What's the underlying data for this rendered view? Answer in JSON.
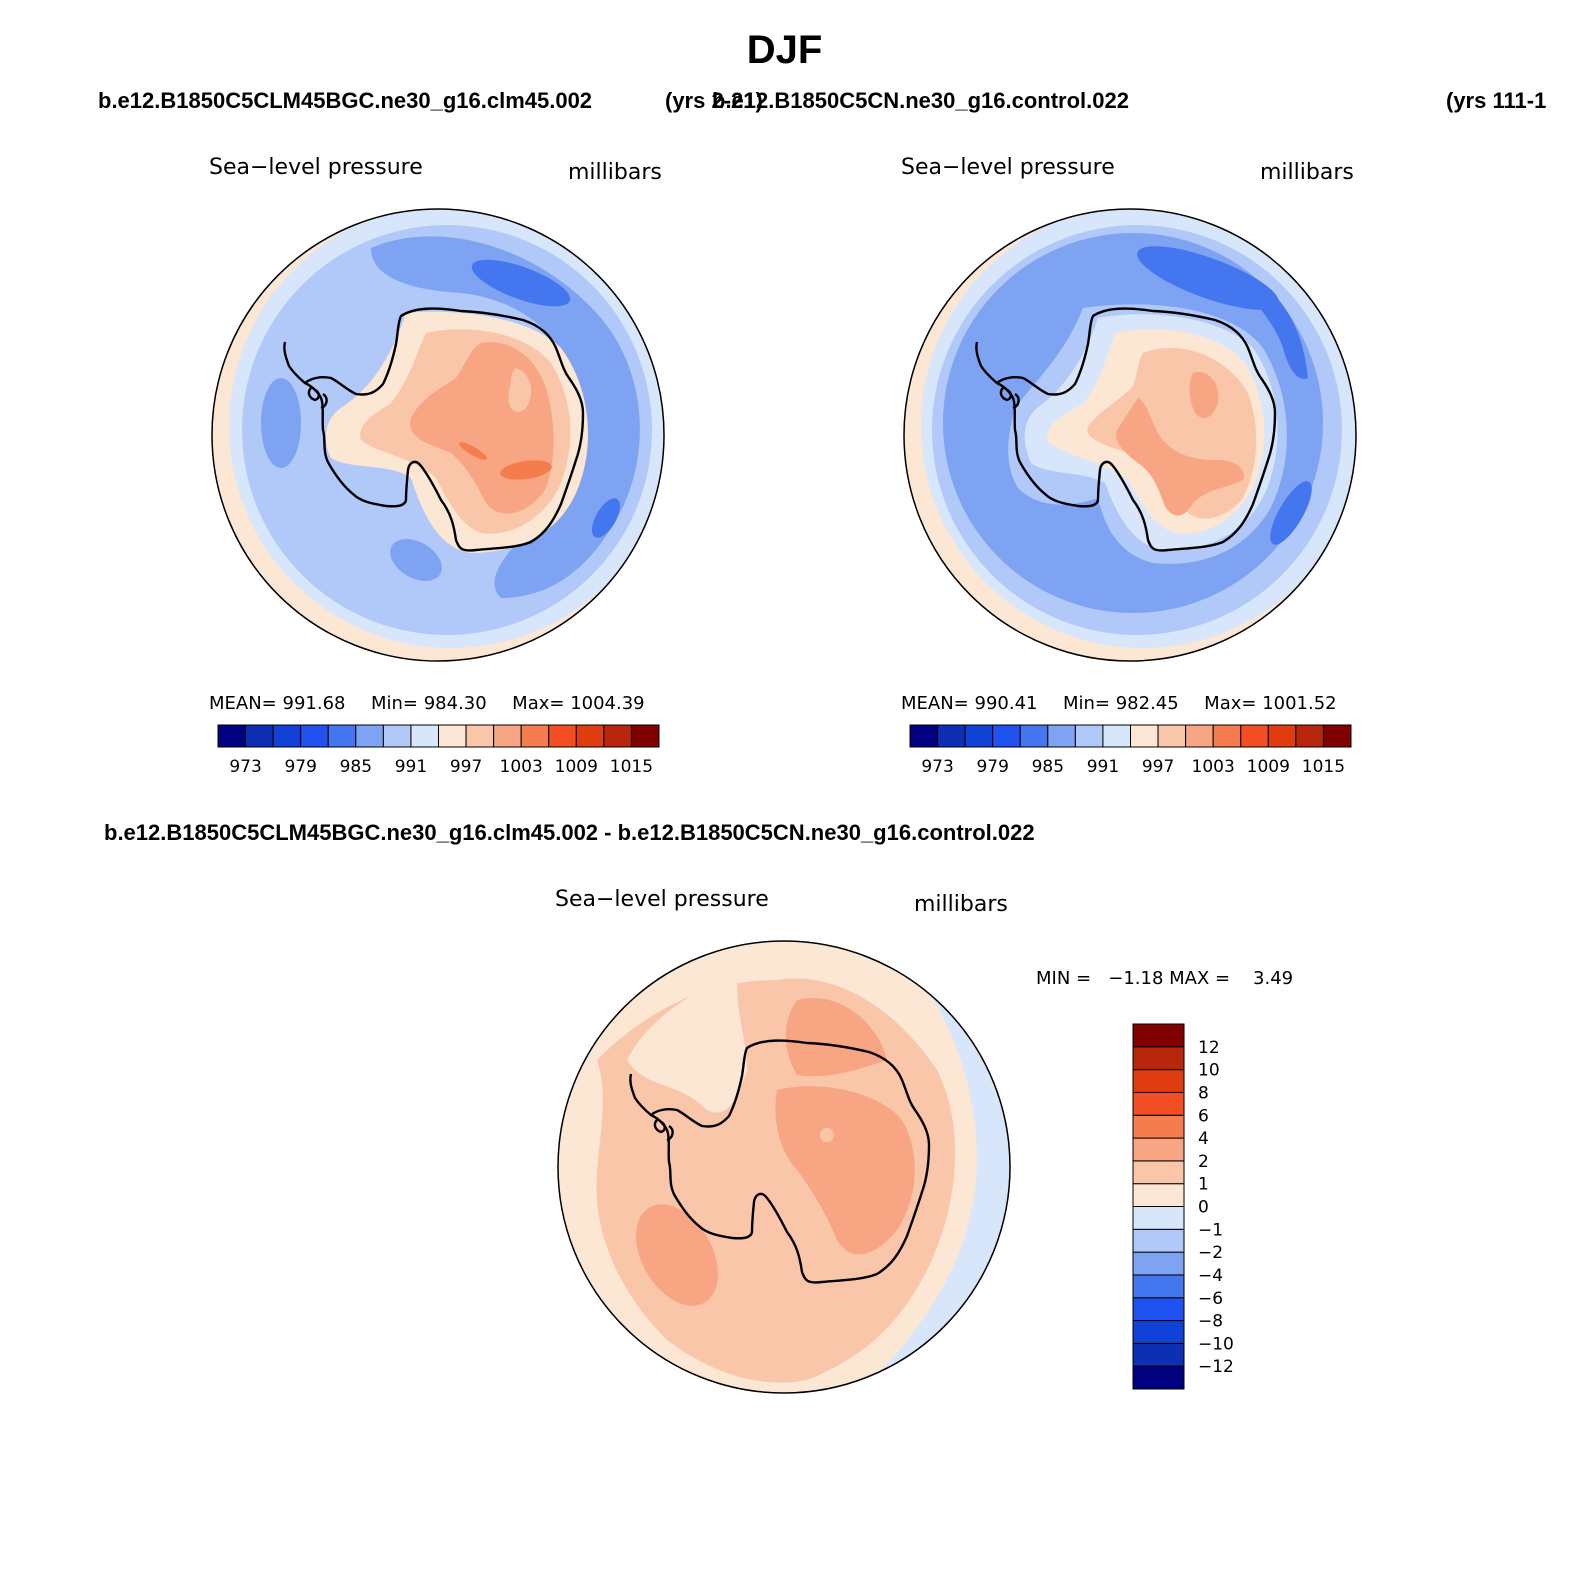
{
  "title": "DJF",
  "header": {
    "case_a": "b.e12.B1850C5CLM45BGC.ne30_g16.clm45.002",
    "years_a": "(yrs 2-21)",
    "case_b": "b.e12.B1850C5CN.ne30_g16.control.022",
    "years_b": "(yrs 111-1"
  },
  "panels": [
    {
      "field": "Sea−level pressure",
      "units": "millibars",
      "mean_label": "MEAN=",
      "mean": "991.68",
      "min_label": "Min=",
      "min": "984.30",
      "max_label": "Max=",
      "max": "1004.39"
    },
    {
      "field": "Sea−level pressure",
      "units": "millibars",
      "mean_label": "MEAN=",
      "mean": "990.41",
      "min_label": "Min=",
      "min": "982.45",
      "max_label": "Max=",
      "max": "1001.52"
    }
  ],
  "diff_panel": {
    "title": "b.e12.B1850C5CLM45BGC.ne30_g16.clm45.002 - b.e12.B1850C5CN.ne30_g16.control.022",
    "field": "Sea−level pressure",
    "units": "millibars",
    "stats": "MIN =   −1.18 MAX =    3.49"
  },
  "colors": {
    "abs_scale": [
      "#000080",
      "#0c2fb3",
      "#1142d8",
      "#1f52ef",
      "#4476ef",
      "#7ea3f2",
      "#b1c9f8",
      "#d8e6fb",
      "#fce6d4",
      "#fac6aa",
      "#f7a583",
      "#f57c4c",
      "#f34e21",
      "#df3d0f",
      "#b8270b",
      "#800000"
    ],
    "diff_scale": [
      "#000080",
      "#0c2fb3",
      "#1142d8",
      "#1f52ef",
      "#4476ef",
      "#7ea3f2",
      "#b1c9f8",
      "#d8e6fb",
      "#fce6d4",
      "#fac6aa",
      "#f7a583",
      "#f57c4c",
      "#f34e21",
      "#df3d0f",
      "#b8270b",
      "#800000"
    ],
    "land_outline": "#000000"
  },
  "chart_data": [
    {
      "type": "heatmap",
      "projection": "south-polar stereographic",
      "title": "Sea−level pressure",
      "units": "millibars",
      "case": "b.e12.B1850C5CLM45BGC.ne30_g16.clm45.002",
      "mean": 991.68,
      "min": 984.3,
      "max": 1004.39,
      "colorbar": {
        "orientation": "horizontal",
        "levels": [
          973,
          976,
          979,
          982,
          985,
          988,
          991,
          994,
          997,
          1000,
          1003,
          1006,
          1009,
          1012,
          1015
        ],
        "tick_labels": [
          "973",
          "979",
          "985",
          "991",
          "997",
          "1003",
          "1009",
          "1015"
        ]
      }
    },
    {
      "type": "heatmap",
      "projection": "south-polar stereographic",
      "title": "Sea−level pressure",
      "units": "millibars",
      "case": "b.e12.B1850C5CN.ne30_g16.control.022",
      "mean": 990.41,
      "min": 982.45,
      "max": 1001.52,
      "colorbar": {
        "orientation": "horizontal",
        "levels": [
          973,
          976,
          979,
          982,
          985,
          988,
          991,
          994,
          997,
          1000,
          1003,
          1006,
          1009,
          1012,
          1015
        ],
        "tick_labels": [
          "973",
          "979",
          "985",
          "991",
          "997",
          "1003",
          "1009",
          "1015"
        ]
      }
    },
    {
      "type": "heatmap",
      "projection": "south-polar stereographic",
      "title": "Sea−level pressure",
      "units": "millibars",
      "case": "b.e12.B1850C5CLM45BGC.ne30_g16.clm45.002 - b.e12.B1850C5CN.ne30_g16.control.022",
      "min": -1.18,
      "max": 3.49,
      "colorbar": {
        "orientation": "vertical",
        "levels": [
          -12,
          -10,
          -8,
          -6,
          -4,
          -2,
          -1,
          0,
          1,
          2,
          4,
          6,
          8,
          10,
          12
        ],
        "tick_labels": [
          "12",
          "10",
          "8",
          "6",
          "4",
          "2",
          "1",
          "0",
          "−1",
          "−2",
          "−4",
          "−6",
          "−8",
          "−10",
          "−12"
        ]
      }
    }
  ]
}
